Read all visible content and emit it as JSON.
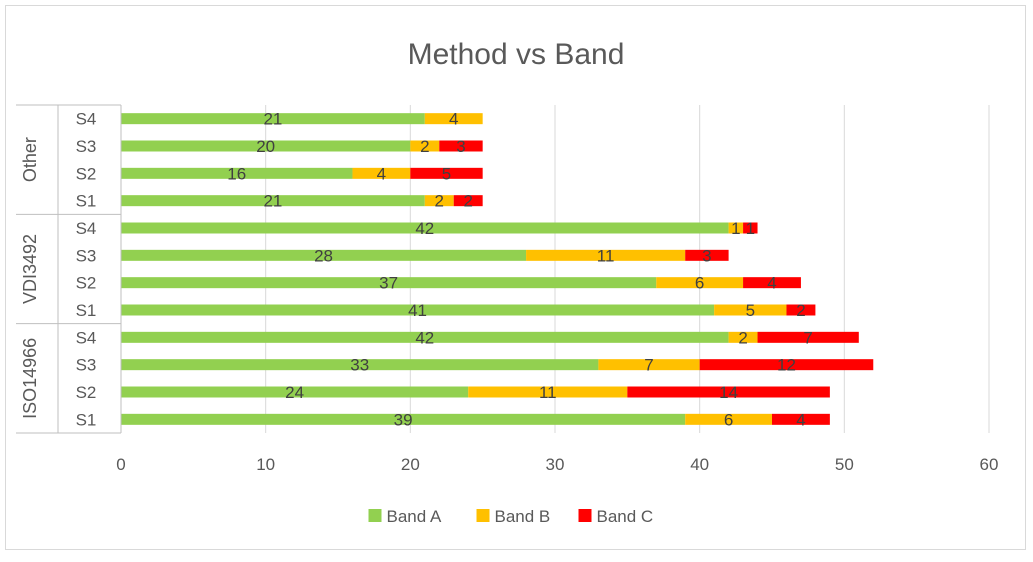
{
  "chart_data": {
    "type": "bar",
    "orientation": "horizontal",
    "stacked": true,
    "title": "Method vs Band",
    "groups": [
      {
        "name": "ISO14966",
        "categories": [
          "S1",
          "S2",
          "S3",
          "S4"
        ]
      },
      {
        "name": "VDI3492",
        "categories": [
          "S1",
          "S2",
          "S3",
          "S4"
        ]
      },
      {
        "name": "Other",
        "categories": [
          "S1",
          "S2",
          "S3",
          "S4"
        ]
      }
    ],
    "series": [
      {
        "name": "Band A",
        "color": "#92D050",
        "values": [
          39,
          24,
          33,
          42,
          41,
          37,
          28,
          42,
          21,
          16,
          20,
          21
        ],
        "labels": [
          "39",
          "24",
          "33",
          "42",
          "41",
          "37",
          "28",
          "42",
          "21",
          "16",
          "20",
          "21"
        ]
      },
      {
        "name": "Band B",
        "color": "#FFC000",
        "values": [
          6,
          11,
          7,
          2,
          5,
          6,
          11,
          1,
          2,
          4,
          2,
          4
        ],
        "labels": [
          "6",
          "11",
          "7",
          "2",
          "5",
          "6",
          "11",
          "1",
          "2",
          "4",
          "2",
          "4"
        ]
      },
      {
        "name": "Band C",
        "color": "#FF0000",
        "values": [
          4,
          14,
          12,
          7,
          2,
          4,
          3,
          1,
          2,
          5,
          3,
          0
        ],
        "labels": [
          "4",
          "14",
          "12",
          "7",
          "2",
          "4",
          "3",
          "1",
          "2",
          "5",
          "3",
          ""
        ]
      }
    ],
    "x_axis": {
      "min": 0,
      "max": 60,
      "major_unit": 10,
      "ticks": [
        "0",
        "10",
        "20",
        "30",
        "40",
        "50",
        "60"
      ]
    },
    "gridlines": true,
    "legend": {
      "position": "bottom",
      "entries": [
        "Band A",
        "Band B",
        "Band C"
      ]
    }
  }
}
